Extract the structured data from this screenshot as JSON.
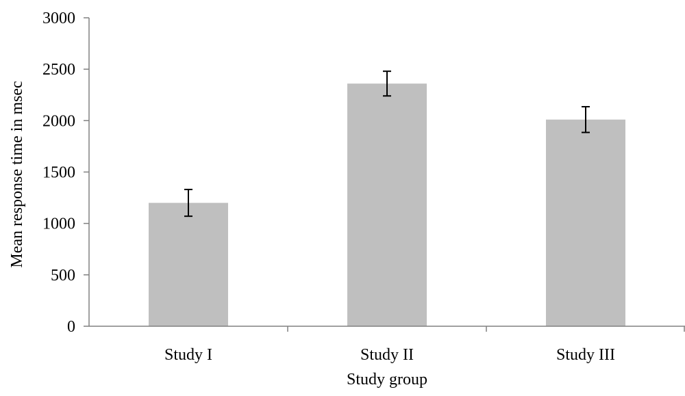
{
  "chart_data": {
    "type": "bar",
    "title": "",
    "xlabel": "Study group",
    "ylabel": "Mean response time in msec",
    "categories": [
      "Study I",
      "Study II",
      "Study III"
    ],
    "values": [
      1200,
      2360,
      2010
    ],
    "error_bars": [
      130,
      120,
      125
    ],
    "ylim": [
      0,
      3000
    ],
    "yticks": [
      0,
      500,
      1000,
      1500,
      2000,
      2500,
      3000
    ],
    "grid": false,
    "legend": "none",
    "bar_color": "#bfbfbf",
    "axis_color": "#808080",
    "error_color": "#000000"
  }
}
